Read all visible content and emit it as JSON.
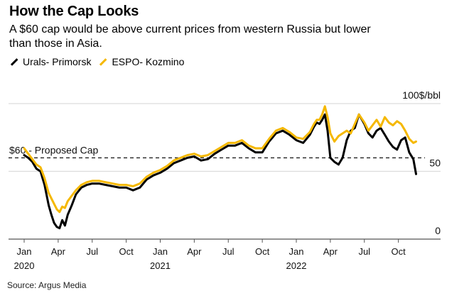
{
  "header": {
    "title": "How the Cap Looks",
    "subtitle": "A $60 cap would be above current prices from western Russia but lower than those in Asia."
  },
  "footer": {
    "source": "Source: Argus Media"
  },
  "chart_data": {
    "type": "line",
    "title": "How the Cap Looks",
    "subtitle": "A $60 cap would be above current prices from western Russia but lower than those in Asia.",
    "xlabel": "",
    "ylabel": "$/bbl",
    "y_unit_label": "100$/bbl",
    "ylim": [
      0,
      100
    ],
    "yticks": [
      {
        "value": 0,
        "label": "0"
      },
      {
        "value": 50,
        "label": "50"
      },
      {
        "value": 100,
        "label": "100$/bbl"
      }
    ],
    "grid": true,
    "legend_position": "top-left",
    "x_range": [
      2020.0,
      2022.9
    ],
    "xticks": [
      {
        "x": 2020.0,
        "label": "Jan",
        "year": "2020"
      },
      {
        "x": 2020.25,
        "label": "Apr",
        "year": ""
      },
      {
        "x": 2020.5,
        "label": "Jul",
        "year": ""
      },
      {
        "x": 2020.75,
        "label": "Oct",
        "year": ""
      },
      {
        "x": 2021.0,
        "label": "Jan",
        "year": "2021"
      },
      {
        "x": 2021.25,
        "label": "Apr",
        "year": ""
      },
      {
        "x": 2021.5,
        "label": "Jul",
        "year": ""
      },
      {
        "x": 2021.75,
        "label": "Oct",
        "year": ""
      },
      {
        "x": 2022.0,
        "label": "Jan",
        "year": "2022"
      },
      {
        "x": 2022.25,
        "label": "Apr",
        "year": ""
      },
      {
        "x": 2022.5,
        "label": "Jul",
        "year": ""
      },
      {
        "x": 2022.75,
        "label": "Oct",
        "year": ""
      }
    ],
    "reference_line": {
      "value": 60,
      "label": "$60 - Proposed Cap",
      "style": "dashed"
    },
    "series": [
      {
        "name": "Urals- Primorsk",
        "color": "#000000",
        "x": [
          2020.0,
          2020.03,
          2020.06,
          2020.09,
          2020.12,
          2020.15,
          2020.18,
          2020.2,
          2020.22,
          2020.24,
          2020.26,
          2020.28,
          2020.3,
          2020.32,
          2020.35,
          2020.38,
          2020.42,
          2020.46,
          2020.5,
          2020.55,
          2020.6,
          2020.65,
          2020.7,
          2020.75,
          2020.8,
          2020.85,
          2020.9,
          2020.95,
          2021.0,
          2021.05,
          2021.1,
          2021.15,
          2021.2,
          2021.25,
          2021.3,
          2021.35,
          2021.4,
          2021.45,
          2021.5,
          2021.55,
          2021.6,
          2021.65,
          2021.7,
          2021.75,
          2021.8,
          2021.85,
          2021.9,
          2021.95,
          2022.0,
          2022.05,
          2022.1,
          2022.13,
          2022.15,
          2022.17,
          2022.19,
          2022.21,
          2022.23,
          2022.25,
          2022.28,
          2022.31,
          2022.34,
          2022.37,
          2022.4,
          2022.43,
          2022.46,
          2022.5,
          2022.53,
          2022.56,
          2022.59,
          2022.62,
          2022.65,
          2022.68,
          2022.71,
          2022.74,
          2022.77,
          2022.8,
          2022.83,
          2022.86,
          2022.88
        ],
        "values": [
          62,
          60,
          57,
          52,
          50,
          40,
          25,
          18,
          12,
          9,
          8,
          14,
          10,
          18,
          25,
          33,
          38,
          40,
          41,
          41,
          40,
          39,
          38,
          38,
          36,
          38,
          44,
          47,
          49,
          52,
          56,
          58,
          60,
          61,
          58,
          59,
          63,
          66,
          69,
          69,
          71,
          67,
          64,
          64,
          72,
          78,
          80,
          77,
          73,
          71,
          77,
          83,
          86,
          85,
          88,
          92,
          80,
          60,
          57,
          55,
          60,
          73,
          80,
          82,
          92,
          85,
          78,
          75,
          80,
          82,
          77,
          72,
          68,
          66,
          73,
          75,
          64,
          59,
          48
        ]
      },
      {
        "name": "ESPO- Kozmino",
        "color": "#f5b800",
        "x": [
          2020.0,
          2020.03,
          2020.06,
          2020.09,
          2020.12,
          2020.15,
          2020.18,
          2020.2,
          2020.22,
          2020.24,
          2020.26,
          2020.28,
          2020.3,
          2020.32,
          2020.35,
          2020.38,
          2020.42,
          2020.46,
          2020.5,
          2020.55,
          2020.6,
          2020.65,
          2020.7,
          2020.75,
          2020.8,
          2020.85,
          2020.9,
          2020.95,
          2021.0,
          2021.05,
          2021.1,
          2021.15,
          2021.2,
          2021.25,
          2021.3,
          2021.35,
          2021.4,
          2021.45,
          2021.5,
          2021.55,
          2021.6,
          2021.65,
          2021.7,
          2021.75,
          2021.8,
          2021.85,
          2021.9,
          2021.95,
          2022.0,
          2022.05,
          2022.1,
          2022.13,
          2022.15,
          2022.17,
          2022.19,
          2022.21,
          2022.23,
          2022.25,
          2022.28,
          2022.31,
          2022.34,
          2022.37,
          2022.4,
          2022.43,
          2022.46,
          2022.5,
          2022.53,
          2022.56,
          2022.59,
          2022.62,
          2022.65,
          2022.68,
          2022.71,
          2022.74,
          2022.77,
          2022.8,
          2022.83,
          2022.86,
          2022.88
        ],
        "values": [
          67,
          63,
          59,
          55,
          53,
          45,
          34,
          30,
          26,
          22,
          20,
          24,
          23,
          28,
          32,
          36,
          40,
          42,
          43,
          43,
          42,
          41,
          40,
          40,
          39,
          41,
          46,
          49,
          51,
          54,
          58,
          60,
          62,
          63,
          61,
          62,
          65,
          68,
          71,
          71,
          73,
          69,
          67,
          67,
          74,
          80,
          82,
          79,
          75,
          74,
          79,
          85,
          88,
          88,
          92,
          98,
          90,
          78,
          72,
          76,
          78,
          80,
          78,
          85,
          92,
          86,
          80,
          84,
          88,
          83,
          90,
          86,
          84,
          87,
          85,
          80,
          74,
          71,
          72
        ]
      }
    ]
  }
}
